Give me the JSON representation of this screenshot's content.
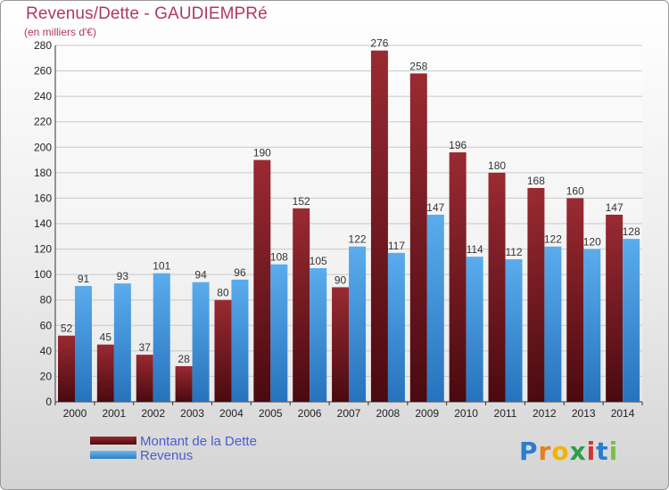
{
  "title": "Revenus/Dette - GAUDIEMPRé",
  "subtitle": "(en milliers d'€)",
  "logo_text": [
    "P",
    "r",
    "o",
    "x",
    "i",
    "t",
    "i"
  ],
  "colors": {
    "dette": "#7a1820",
    "revenus": "#3d95dc"
  },
  "chart_data": {
    "type": "bar",
    "categories": [
      "2000",
      "2001",
      "2002",
      "2003",
      "2004",
      "2005",
      "2006",
      "2007",
      "2008",
      "2009",
      "2010",
      "2011",
      "2012",
      "2013",
      "2014"
    ],
    "series": [
      {
        "name": "Montant de la Dette",
        "values": [
          52,
          45,
          37,
          28,
          80,
          190,
          152,
          90,
          276,
          258,
          196,
          180,
          168,
          160,
          147
        ]
      },
      {
        "name": "Revenus",
        "values": [
          91,
          93,
          101,
          94,
          96,
          108,
          105,
          122,
          117,
          147,
          114,
          112,
          122,
          120,
          128
        ]
      }
    ],
    "ylim": [
      0,
      280
    ],
    "yticks": [
      0,
      20,
      40,
      60,
      80,
      100,
      120,
      140,
      160,
      180,
      200,
      220,
      240,
      260,
      280
    ],
    "grid": true,
    "legend_position": "bottom-left"
  }
}
